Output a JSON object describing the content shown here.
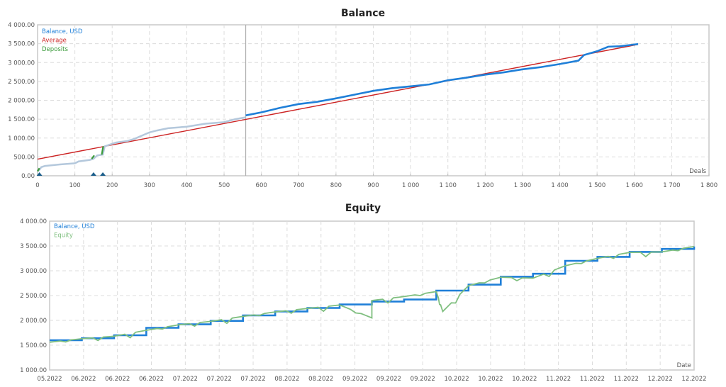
{
  "chart_data": [
    {
      "type": "line",
      "title": "Balance",
      "xlabel": "Deals",
      "ylabel": "",
      "xlim": [
        0,
        1800
      ],
      "ylim": [
        0,
        4000
      ],
      "x_ticks": [
        "0",
        "100",
        "200",
        "300",
        "400",
        "500",
        "600",
        "700",
        "800",
        "900",
        "1 000",
        "1 100",
        "1 200",
        "1 300",
        "1 400",
        "1 500",
        "1 600",
        "1 700",
        "1 800"
      ],
      "y_ticks": [
        "0.00",
        "500.00",
        "1 000.00",
        "1 500.00",
        "2 000.00",
        "2 500.00",
        "3 000.00",
        "3 500.00",
        "4 000.00"
      ],
      "grid": true,
      "legend_position": "top-left",
      "legend": [
        "Balance, USD",
        "Average",
        "Deposits"
      ],
      "colors": {
        "balance": "#1f7fd8",
        "balance_history": "#b4c8dc",
        "average": "#cc2222",
        "deposits": "#3a9a3a",
        "deposit_marker": "#1a5d8a"
      },
      "vertical_marker_x": 558,
      "series": [
        {
          "name": "Balance, USD (history)",
          "x": [
            0,
            5,
            10,
            20,
            60,
            100,
            110,
            140,
            150,
            160,
            175,
            180,
            210,
            240,
            260,
            300,
            320,
            350,
            400,
            450,
            500,
            530,
            558
          ],
          "y": [
            120,
            160,
            230,
            260,
            300,
            330,
            380,
            420,
            450,
            540,
            560,
            780,
            880,
            920,
            980,
            1150,
            1200,
            1260,
            1300,
            1380,
            1420,
            1500,
            1550
          ]
        },
        {
          "name": "Balance, USD",
          "x": [
            558,
            600,
            650,
            700,
            750,
            800,
            850,
            900,
            950,
            1000,
            1050,
            1100,
            1150,
            1200,
            1250,
            1300,
            1350,
            1400,
            1450,
            1465,
            1500,
            1530,
            1560,
            1610
          ],
          "y": [
            1600,
            1680,
            1800,
            1900,
            1960,
            2050,
            2150,
            2250,
            2320,
            2370,
            2420,
            2530,
            2600,
            2680,
            2740,
            2820,
            2880,
            2960,
            3050,
            3200,
            3300,
            3420,
            3430,
            3490
          ]
        },
        {
          "name": "Average",
          "x": [
            0,
            1610
          ],
          "y": [
            440,
            3480
          ]
        },
        {
          "name": "Deposits",
          "x": [
            5,
            150,
            175
          ],
          "y": [
            120,
            100,
            230
          ]
        }
      ]
    },
    {
      "type": "line",
      "title": "Equity",
      "xlabel": "Date",
      "ylabel": "",
      "ylim": [
        1000,
        4000
      ],
      "x_ticks": [
        "05.2022",
        "06.2022",
        "06.2022",
        "06.2022",
        "07.2022",
        "07.2022",
        "07.2022",
        "08.2022",
        "08.2022",
        "09.2022",
        "09.2022",
        "09.2022",
        "10.2022",
        "10.2022",
        "10.2022",
        "11.2022",
        "11.2022",
        "11.2022",
        "12.2022",
        "12.2022"
      ],
      "y_ticks": [
        "1 000.00",
        "1 500.00",
        "2 000.00",
        "2 500.00",
        "3 000.00",
        "3 500.00",
        "4 000.00"
      ],
      "grid": true,
      "legend_position": "top-left",
      "legend": [
        "Balance, USD",
        "Equity"
      ],
      "colors": {
        "balance": "#1f7fd8",
        "equity": "#7fbf7f"
      },
      "series": [
        {
          "name": "Balance, USD",
          "x_frac": [
            0,
            0.05,
            0.1,
            0.15,
            0.2,
            0.25,
            0.3,
            0.35,
            0.4,
            0.45,
            0.5,
            0.55,
            0.6,
            0.65,
            0.7,
            0.75,
            0.8,
            0.85,
            0.9,
            0.95,
            1.0
          ],
          "y": [
            1600,
            1640,
            1700,
            1850,
            1920,
            1990,
            2100,
            2180,
            2250,
            2320,
            2380,
            2420,
            2600,
            2720,
            2880,
            2940,
            3200,
            3280,
            3380,
            3440,
            3490
          ]
        },
        {
          "name": "Equity",
          "x_frac": [
            0,
            0.05,
            0.1,
            0.15,
            0.2,
            0.25,
            0.3,
            0.35,
            0.4,
            0.45,
            0.5,
            0.5,
            0.55,
            0.6,
            0.61,
            0.65,
            0.7,
            0.75,
            0.8,
            0.85,
            0.9,
            0.95,
            1.0
          ],
          "y": [
            1560,
            1630,
            1680,
            1800,
            1910,
            1980,
            2080,
            2170,
            2240,
            2310,
            2050,
            2400,
            2480,
            2580,
            2180,
            2700,
            2870,
            2850,
            3100,
            3250,
            3370,
            3380,
            3490
          ]
        }
      ]
    }
  ]
}
